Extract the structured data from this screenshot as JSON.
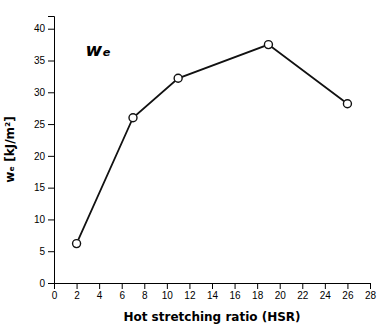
{
  "chart_data": {
    "type": "line",
    "x": [
      2,
      7,
      11,
      19,
      26
    ],
    "values": [
      6.2,
      26.0,
      32.2,
      37.5,
      28.2
    ],
    "xlabel": "Hot stretching ratio (HSR)",
    "ylabel": "wₑ [kJ/m²]",
    "annotations": [
      "wₑ"
    ],
    "xlim": [
      0,
      28
    ],
    "ylim": [
      0,
      42
    ],
    "xticks": [
      0,
      2,
      4,
      6,
      8,
      10,
      12,
      14,
      16,
      18,
      20,
      22,
      24,
      26,
      28
    ],
    "yticks": [
      0,
      5,
      10,
      15,
      20,
      25,
      30,
      35,
      40
    ],
    "color": "#111111",
    "marker": "circle",
    "grid": false
  }
}
